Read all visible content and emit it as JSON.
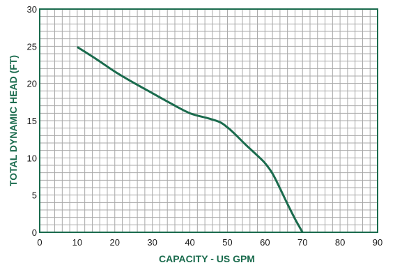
{
  "colors": {
    "accent": "#1a6b4d",
    "grid": "#a8a8a8",
    "frame": "#1a6b4d",
    "text": "#1a1a1a"
  },
  "chart_data": {
    "type": "line",
    "title": "",
    "xlabel": "CAPACITY - US GPM",
    "ylabel": "TOTAL DYNAMIC HEAD (FT)",
    "xlim": [
      0,
      90
    ],
    "ylim": [
      0,
      30
    ],
    "x_ticks": [
      "0",
      "10",
      "20",
      "30",
      "40",
      "50",
      "60",
      "70",
      "80",
      "90"
    ],
    "y_ticks": [
      "0",
      "5",
      "10",
      "15",
      "20",
      "25",
      "30"
    ],
    "grid": true,
    "minor_grid_step_x": 2,
    "minor_grid_step_y": 1,
    "series": [
      {
        "x": [
          10,
          15,
          20,
          25,
          30,
          35,
          40,
          45,
          48,
          50,
          52,
          55,
          58,
          60,
          62,
          64,
          66,
          68,
          70
        ],
        "y": [
          24.9,
          23.3,
          21.6,
          20.1,
          18.7,
          17.3,
          16.0,
          15.3,
          14.8,
          14.1,
          13.2,
          11.7,
          10.3,
          9.3,
          7.9,
          5.9,
          3.8,
          1.8,
          0
        ]
      }
    ]
  }
}
